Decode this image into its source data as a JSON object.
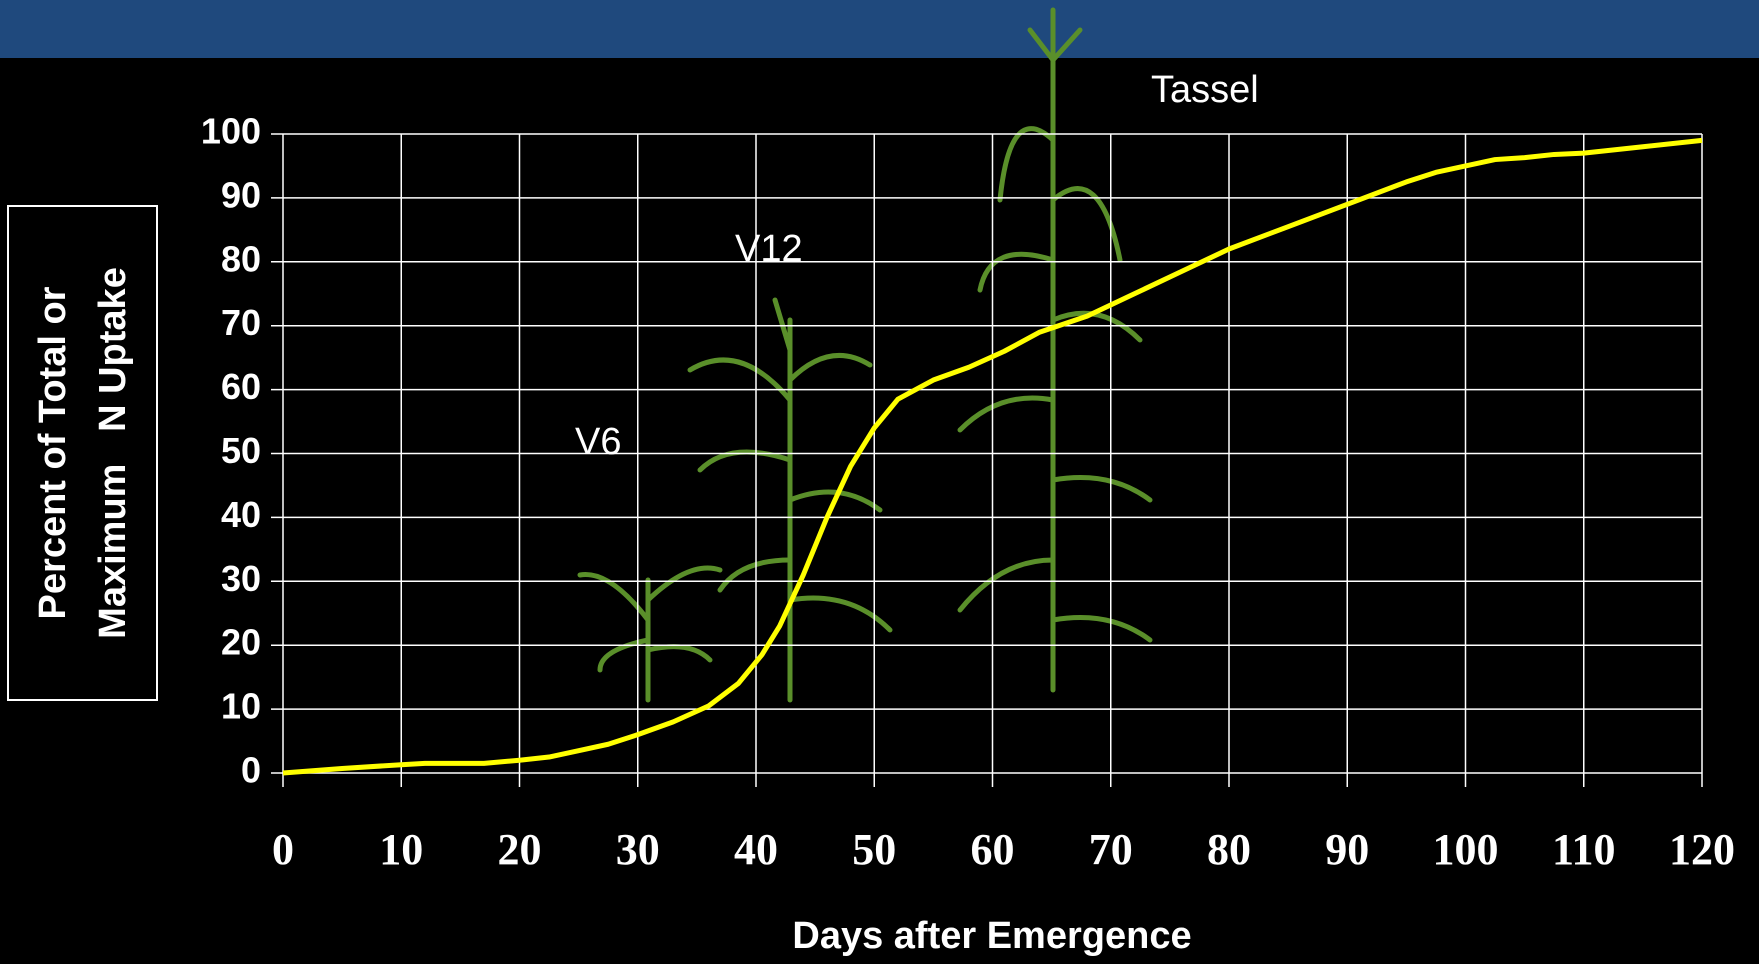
{
  "chart_data": {
    "type": "line",
    "xlabel": "Days after Emergence",
    "ylabel": [
      "Percent of Total or",
      "Maximum   N Uptake"
    ],
    "annotations": [
      "V6",
      "V12",
      "Tassel"
    ],
    "x": [
      0,
      5,
      10,
      12,
      17,
      20,
      22.5,
      25,
      27.5,
      30,
      33,
      36,
      38.5,
      40.5,
      42,
      44,
      46,
      48,
      50,
      52,
      55,
      58,
      61,
      64,
      68,
      72,
      76,
      80,
      85,
      90,
      95,
      97.5,
      100,
      102.5,
      105,
      107.5,
      110,
      115,
      120
    ],
    "series": [
      {
        "color": "#ffff00",
        "values": [
          0,
          0.7,
          1.3,
          1.5,
          1.5,
          2,
          2.5,
          3.5,
          4.5,
          6,
          8,
          10.5,
          14,
          18.5,
          23,
          31,
          40,
          48,
          54,
          58.5,
          61.5,
          63.5,
          66,
          69,
          71.5,
          75,
          78.5,
          82,
          85.5,
          89,
          92.5,
          94,
          95,
          96,
          96.3,
          96.8,
          97,
          98,
          99
        ]
      }
    ],
    "xlim": [
      0,
      120
    ],
    "xticks": [
      0,
      10,
      20,
      30,
      40,
      50,
      60,
      70,
      80,
      90,
      100,
      110,
      120
    ],
    "ylim": [
      0,
      100
    ],
    "yticks": [
      0,
      10,
      20,
      30,
      40,
      50,
      60,
      70,
      80,
      90,
      100
    ],
    "grid": true
  }
}
